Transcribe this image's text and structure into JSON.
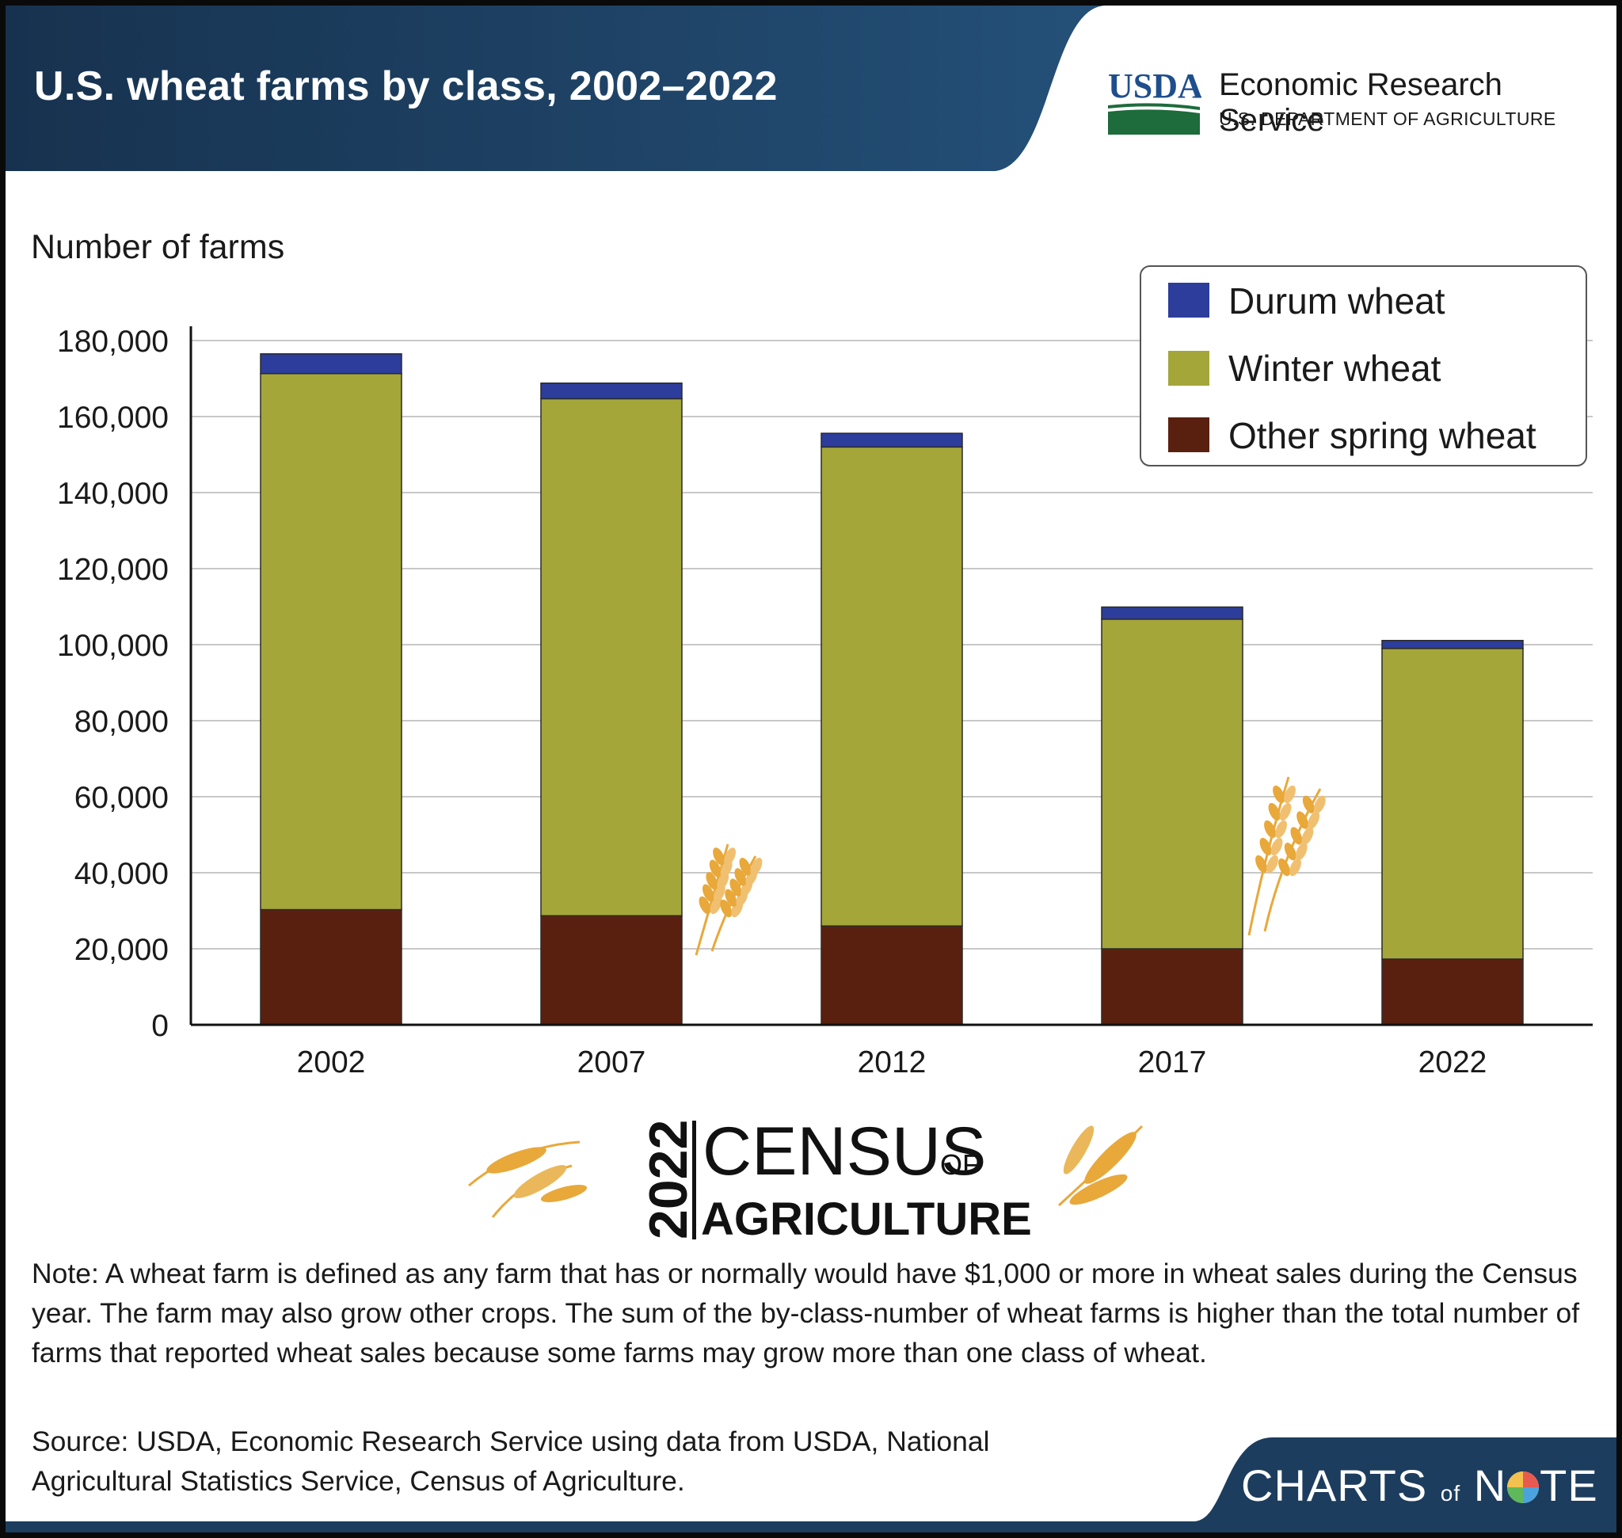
{
  "header": {
    "title": "U.S. wheat farms by class, 2002–2022",
    "logo_text": "USDA",
    "agency": "Economic Research Service",
    "department": "U.S. DEPARTMENT OF AGRICULTURE"
  },
  "colors": {
    "header_bg": "#1c3d5e",
    "durum": "#2d3d9b",
    "winter": "#a5a63a",
    "spring": "#5a200f",
    "gridline": "#c8c8c8",
    "usda_blue": "#1f4e8c",
    "usda_green": "#1e6b3c",
    "wheat_gold": "#e8a83a"
  },
  "chart_data": {
    "type": "bar",
    "stacked": true,
    "categories": [
      "2002",
      "2007",
      "2012",
      "2017",
      "2022"
    ],
    "series": [
      {
        "name": "Other spring wheat",
        "values": [
          30300,
          28700,
          26000,
          20000,
          17300
        ]
      },
      {
        "name": "Winter wheat",
        "values": [
          141000,
          136000,
          126000,
          86700,
          81700
        ]
      },
      {
        "name": "Durum wheat",
        "values": [
          5200,
          4100,
          3600,
          3200,
          2100
        ]
      }
    ],
    "ylabel": "Number of farms",
    "ylim": [
      0,
      180000
    ],
    "yticks": [
      0,
      20000,
      40000,
      60000,
      80000,
      100000,
      120000,
      140000,
      160000,
      180000
    ],
    "ytick_labels": [
      "0",
      "20,000",
      "40,000",
      "60,000",
      "80,000",
      "100,000",
      "120,000",
      "140,000",
      "160,000",
      "180,000"
    ],
    "grid": true,
    "legend": [
      "Durum wheat",
      "Winter wheat",
      "Other spring wheat"
    ],
    "legend_position": "top-right"
  },
  "census_logo": {
    "year": "2022",
    "word1": "CENSUS",
    "of": "OF",
    "word2": "AGRICULTURE"
  },
  "notes": {
    "note": "Note: A wheat farm is defined as any farm that has or normally would have $1,000 or more in wheat sales during the Census year. The farm may also grow other crops. The sum of the by-class-number of wheat farms is higher than the total number of farms that reported wheat sales because some farms may grow more than one class of wheat.",
    "source": "Source: USDA, Economic Research Service using data from USDA, National Agricultural Statistics Service, Census of Agriculture."
  },
  "footer": {
    "brand_part1": "CHARTS",
    "brand_of": "of",
    "brand_n": "N",
    "brand_o": "O",
    "brand_part2": "TE"
  }
}
